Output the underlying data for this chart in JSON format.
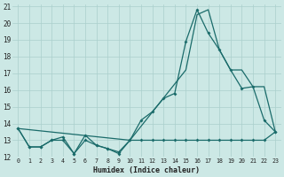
{
  "xlabel": "Humidex (Indice chaleur)",
  "bg_color": "#cce8e5",
  "grid_color": "#aacfcc",
  "line_color": "#1a6b6a",
  "xlim": [
    -0.5,
    23.5
  ],
  "ylim": [
    12,
    21
  ],
  "yticks": [
    12,
    13,
    14,
    15,
    16,
    17,
    18,
    19,
    20,
    21
  ],
  "xticks": [
    0,
    1,
    2,
    3,
    4,
    5,
    6,
    7,
    8,
    9,
    10,
    11,
    12,
    13,
    14,
    15,
    16,
    17,
    18,
    19,
    20,
    21,
    22,
    23
  ],
  "line_jagged_x": [
    0,
    1,
    2,
    3,
    4,
    5,
    6,
    7,
    8,
    9,
    10,
    11,
    12,
    13,
    14,
    15,
    16,
    17,
    18,
    19,
    20,
    21,
    22,
    23
  ],
  "line_jagged_y": [
    13.7,
    12.6,
    12.6,
    13.0,
    13.2,
    12.2,
    13.3,
    12.7,
    12.5,
    12.2,
    13.0,
    14.2,
    14.7,
    15.5,
    15.8,
    18.9,
    20.8,
    19.4,
    18.4,
    17.2,
    16.1,
    16.2,
    14.2,
    13.5
  ],
  "line_flat_x": [
    0,
    1,
    2,
    3,
    4,
    5,
    6,
    7,
    8,
    9,
    10,
    11,
    12,
    13,
    14,
    15,
    16,
    17,
    18,
    19,
    20,
    21,
    22,
    23
  ],
  "line_flat_y": [
    13.7,
    12.6,
    12.6,
    13.0,
    13.0,
    12.2,
    13.0,
    12.7,
    12.5,
    12.3,
    13.0,
    13.0,
    13.0,
    13.0,
    13.0,
    13.0,
    13.0,
    13.0,
    13.0,
    13.0,
    13.0,
    13.0,
    13.0,
    13.5
  ],
  "line_diag_x": [
    0,
    10,
    15,
    16,
    17,
    18,
    19,
    20,
    21,
    22,
    23
  ],
  "line_diag_y": [
    13.7,
    13.0,
    17.2,
    20.5,
    20.8,
    18.4,
    17.2,
    17.2,
    16.2,
    16.2,
    13.5
  ]
}
